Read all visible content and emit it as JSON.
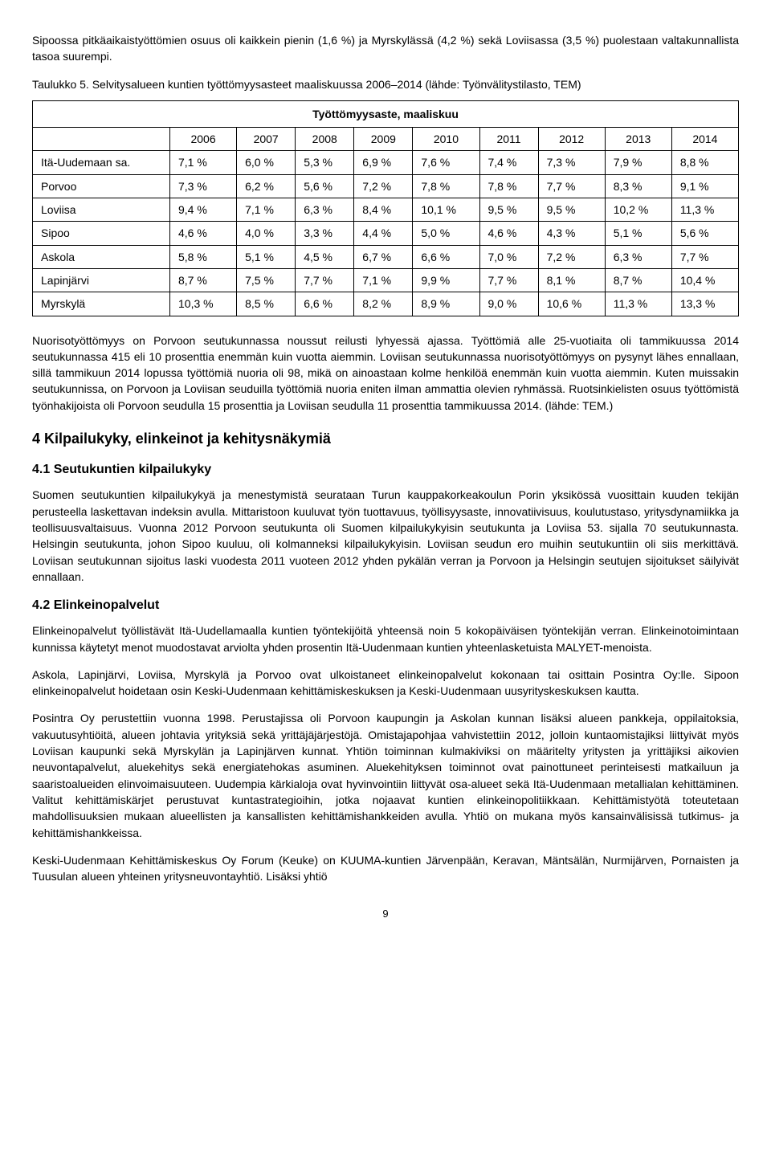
{
  "intro_para": "Sipoossa pitkäaikaistyöttömien osuus oli kaikkein pienin (1,6 %) ja Myrskylässä (4,2 %) sekä Loviisassa (3,5 %) puolestaan valtakunnallista tasoa suurempi.",
  "caption": "Taulukko 5. Selvitysalueen kuntien työttömyysasteet maaliskuussa 2006–2014 (lähde: Työnvälitystilasto, TEM)",
  "table": {
    "title": "Työttömyysaste, maaliskuu",
    "columns": [
      "",
      "2006",
      "2007",
      "2008",
      "2009",
      "2010",
      "2011",
      "2012",
      "2013",
      "2014"
    ],
    "rows": [
      [
        "Itä-Uudemaan sa.",
        "7,1 %",
        "6,0 %",
        "5,3 %",
        "6,9 %",
        "7,6 %",
        "7,4 %",
        "7,3 %",
        "7,9 %",
        "8,8 %"
      ],
      [
        "Porvoo",
        "7,3 %",
        "6,2 %",
        "5,6 %",
        "7,2 %",
        "7,8 %",
        "7,8 %",
        "7,7 %",
        "8,3 %",
        "9,1 %"
      ],
      [
        "Loviisa",
        "9,4 %",
        "7,1 %",
        "6,3 %",
        "8,4 %",
        "10,1 %",
        "9,5 %",
        "9,5 %",
        "10,2 %",
        "11,3 %"
      ],
      [
        "Sipoo",
        "4,6 %",
        "4,0 %",
        "3,3 %",
        "4,4 %",
        "5,0 %",
        "4,6 %",
        "4,3 %",
        "5,1 %",
        "5,6 %"
      ],
      [
        "Askola",
        "5,8 %",
        "5,1 %",
        "4,5 %",
        "6,7 %",
        "6,6 %",
        "7,0 %",
        "7,2 %",
        "6,3 %",
        "7,7 %"
      ],
      [
        "Lapinjärvi",
        "8,7 %",
        "7,5 %",
        "7,7 %",
        "7,1 %",
        "9,9 %",
        "7,7 %",
        "8,1 %",
        "8,7 %",
        "10,4 %"
      ],
      [
        "Myrskylä",
        "10,3 %",
        "8,5 %",
        "6,6 %",
        "8,2 %",
        "8,9 %",
        "9,0 %",
        "10,6 %",
        "11,3 %",
        "13,3 %"
      ]
    ],
    "col_widths": [
      "150px",
      "auto",
      "auto",
      "auto",
      "auto",
      "auto",
      "auto",
      "auto",
      "auto",
      "auto"
    ],
    "border_color": "#000000",
    "background_color": "#ffffff",
    "font_size": 14
  },
  "para_after_table": "Nuorisotyöttömyys on Porvoon seutukunnassa noussut reilusti lyhyessä ajassa. Työttömiä alle 25-vuotiaita oli tammikuussa 2014 seutukunnassa 415 eli 10 prosenttia enemmän kuin vuotta aiemmin. Loviisan seutukunnassa nuorisotyöttömyys on pysynyt lähes ennallaan, sillä tammikuun 2014 lopussa työttömiä nuoria oli 98, mikä on ainoastaan kolme henkilöä enemmän kuin vuotta aiemmin. Kuten muissakin seutukunnissa, on Porvoon ja Loviisan seuduilla työttömiä nuoria eniten ilman ammattia olevien ryhmässä. Ruotsinkielisten osuus työttömistä työnhakijoista oli Porvoon seudulla 15 prosenttia ja Loviisan seudulla 11 prosenttia tammikuussa 2014. (lähde: TEM.)",
  "h2": "4  Kilpailukyky, elinkeinot ja kehitysnäkymiä",
  "h3_41": "4.1 Seutukuntien kilpailukyky",
  "para_41": "Suomen seutukuntien kilpailukykyä ja menestymistä seurataan Turun kauppakorkeakoulun Porin yksikössä vuosittain kuuden tekijän perusteella laskettavan indeksin avulla. Mittaristoon kuuluvat työn tuottavuus, työllisyysaste, innovatiivisuus, koulutustaso, yritysdynamiikka ja teollisuusvaltaisuus. Vuonna 2012 Porvoon seutukunta oli Suomen kilpailukykyisin seutukunta ja Loviisa 53. sijalla 70 seutukunnasta. Helsingin seutukunta, johon Sipoo kuuluu, oli kolmanneksi kilpailukykyisin. Loviisan seudun ero muihin seutukuntiin oli siis merkittävä. Loviisan seutukunnan sijoitus laski vuodesta 2011 vuoteen 2012 yhden pykälän verran ja Porvoon ja Helsingin seutujen sijoitukset säilyivät ennallaan.",
  "h3_42": "4.2 Elinkeinopalvelut",
  "para_42a": "Elinkeinopalvelut työllistävät Itä-Uudellamaalla kuntien työntekijöitä yhteensä noin 5 kokopäiväisen työntekijän verran. Elinkeinotoimintaan kunnissa käytetyt menot muodostavat arviolta yhden prosentin Itä-Uudenmaan kuntien yhteenlasketuista MALYET-menoista.",
  "para_42b": "Askola, Lapinjärvi, Loviisa, Myrskylä ja Porvoo ovat ulkoistaneet elinkeinopalvelut kokonaan tai osittain Posintra Oy:lle. Sipoon elinkeinopalvelut hoidetaan osin Keski-Uudenmaan kehittämiskeskuksen ja Keski-Uudenmaan uusyrityskeskuksen kautta.",
  "para_42c": "Posintra Oy perustettiin vuonna 1998. Perustajissa oli Porvoon kaupungin ja Askolan kunnan lisäksi alueen pankkeja, oppilaitoksia, vakuutusyhtiöitä, alueen johtavia yrityksiä sekä yrittäjäjärjestöjä. Omistajapohjaa vahvistettiin 2012, jolloin kuntaomistajiksi liittyivät myös Loviisan kaupunki sekä Myrskylän ja Lapinjärven kunnat. Yhtiön toiminnan kulmakiviksi on määritelty yritysten ja yrittäjiksi aikovien neuvontapalvelut, aluekehitys sekä energiatehokas asuminen. Aluekehityksen toiminnot ovat painottuneet perinteisesti matkailuun ja saaristoalueiden elinvoimaisuuteen. Uudempia kärkialoja ovat hyvinvointiin liittyvät osa-alueet sekä Itä-Uudenmaan metallialan kehittäminen. Valitut kehittämiskärjet perustuvat kuntastrategioihin, jotka nojaavat kuntien elinkeinopolitiikkaan. Kehittämistyötä toteutetaan mahdollisuuksien mukaan alueellisten ja kansallisten kehittämishankkeiden avulla. Yhtiö on mukana myös kansainvälisissä tutkimus- ja kehittämishankkeissa.",
  "para_42d": "Keski-Uudenmaan Kehittämiskeskus Oy Forum (Keuke) on KUUMA-kuntien Järvenpään, Keravan, Mäntsälän, Nurmijärven, Pornaisten ja Tuusulan alueen yhteinen yritysneuvontayhtiö. Lisäksi yhtiö",
  "page_number": "9"
}
